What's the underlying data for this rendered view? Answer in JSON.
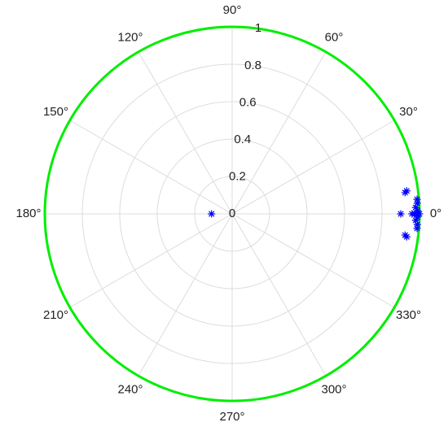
{
  "chart_data": {
    "type": "polar",
    "thetaticks": [
      {
        "value": 0,
        "label": "0°"
      },
      {
        "value": 30,
        "label": "30°"
      },
      {
        "value": 60,
        "label": "60°"
      },
      {
        "value": 90,
        "label": "90°"
      },
      {
        "value": 120,
        "label": "120°"
      },
      {
        "value": 150,
        "label": "150°"
      },
      {
        "value": 180,
        "label": "180°"
      },
      {
        "value": 210,
        "label": "210°"
      },
      {
        "value": 240,
        "label": "240°"
      },
      {
        "value": 270,
        "label": "270°"
      },
      {
        "value": 300,
        "label": "300°"
      },
      {
        "value": 330,
        "label": "330°"
      }
    ],
    "rlim": [
      0,
      1
    ],
    "rticks": [
      0,
      0.2,
      0.4,
      0.6,
      0.8,
      1
    ],
    "grid": true,
    "boundary_color": "#00ee00",
    "series": [
      {
        "color": "#0000ff",
        "marker": "asterisk",
        "x": [
          180,
          0,
          0,
          0,
          0,
          2,
          358,
          3.3,
          356.7,
          7,
          353,
          7.5,
          352.5,
          1,
          359,
          0,
          4.5,
          355.5
        ],
        "values": [
          0.11,
          0.9,
          0.96,
          0.99,
          1.0,
          0.98,
          0.98,
          0.99,
          0.99,
          0.93,
          0.93,
          0.94,
          0.94,
          0.99,
          0.99,
          0.975,
          0.99,
          0.99
        ]
      }
    ]
  }
}
